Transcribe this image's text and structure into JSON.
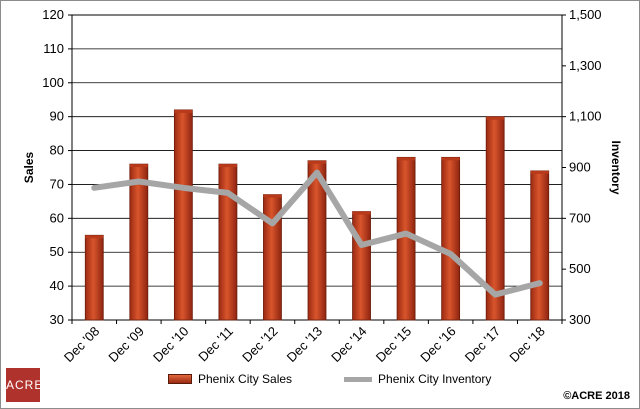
{
  "logo": {
    "line1": "ACRE",
    "line2": ""
  },
  "copyright": "©ACRE 2018",
  "chart_data": {
    "type": "bar",
    "categories": [
      "Dec '08",
      "Dec '09",
      "Dec '10",
      "Dec '11",
      "Dec '12",
      "Dec '13",
      "Dec '14",
      "Dec '15",
      "Dec '16",
      "Dec '17",
      "Dec '18"
    ],
    "series": [
      {
        "name": "Phenix City Sales",
        "type": "bar",
        "axis": "left",
        "values": [
          55,
          76,
          92,
          76,
          67,
          77,
          62,
          78,
          78,
          90,
          74
        ],
        "color": "#c0401e"
      },
      {
        "name": "Phenix City Inventory",
        "type": "line",
        "axis": "right",
        "values": [
          820,
          845,
          820,
          800,
          680,
          880,
          595,
          640,
          560,
          400,
          445
        ],
        "color": "#a6a6a6"
      }
    ],
    "ylabel": "Sales",
    "y2label": "Inventory",
    "ylim": [
      30,
      120
    ],
    "yticks": [
      "30",
      "40",
      "50",
      "60",
      "70",
      "80",
      "90",
      "100",
      "110",
      "120"
    ],
    "y2lim": [
      300,
      1500
    ],
    "y2ticks": [
      "300",
      "500",
      "700",
      "900",
      "1,100",
      "1,300",
      "1,500"
    ],
    "grid": true,
    "legend": "bottom"
  }
}
